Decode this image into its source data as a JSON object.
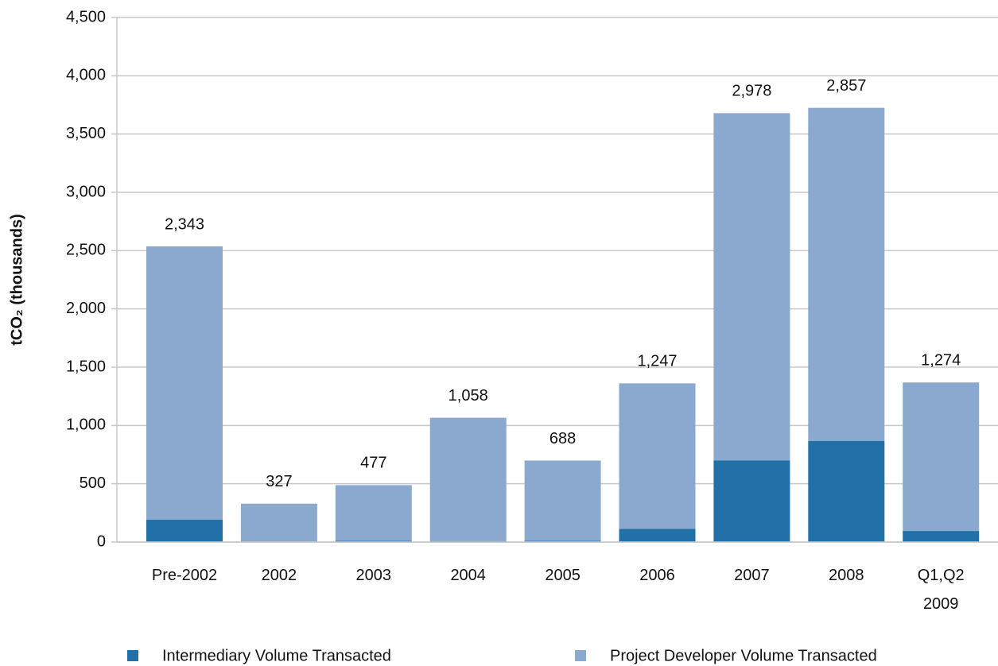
{
  "chart_data": {
    "type": "stacked_bar",
    "y_label": "tCO₂ (thousands)",
    "categories": [
      "Pre-2002",
      "2002",
      "2003",
      "2004",
      "2005",
      "2006",
      "2007",
      "2008",
      "Q1,Q2 2009"
    ],
    "series": [
      {
        "name": "Intermediary Volume Transacted",
        "color": "#2270a8",
        "values": [
          193,
          2,
          11,
          8,
          11,
          114,
          701,
          868,
          95
        ]
      },
      {
        "name": "Project Developer Volume Transacted",
        "color": "#8ba9cf",
        "values": [
          2343,
          327,
          477,
          1058,
          688,
          1247,
          2978,
          2857,
          1274
        ],
        "value_labels": [
          "2,343",
          "327",
          "477",
          "1,058",
          "688",
          "1,247",
          "2,978",
          "2,857",
          "1,274"
        ]
      }
    ],
    "ylim": [
      0,
      4500
    ],
    "yticks": [
      0,
      500,
      {
        "value": 1000,
        "label": "1,000"
      },
      {
        "value": 1500,
        "label": "1,500"
      },
      {
        "value": 2000,
        "label": "2,000"
      },
      {
        "value": 2500,
        "label": "2,500"
      },
      {
        "value": 3000,
        "label": "3,000"
      },
      {
        "value": 3500,
        "label": "3,500"
      },
      {
        "value": 4000,
        "label": "4,000"
      },
      {
        "value": 4500,
        "label": "4,500"
      }
    ],
    "grid": true
  }
}
